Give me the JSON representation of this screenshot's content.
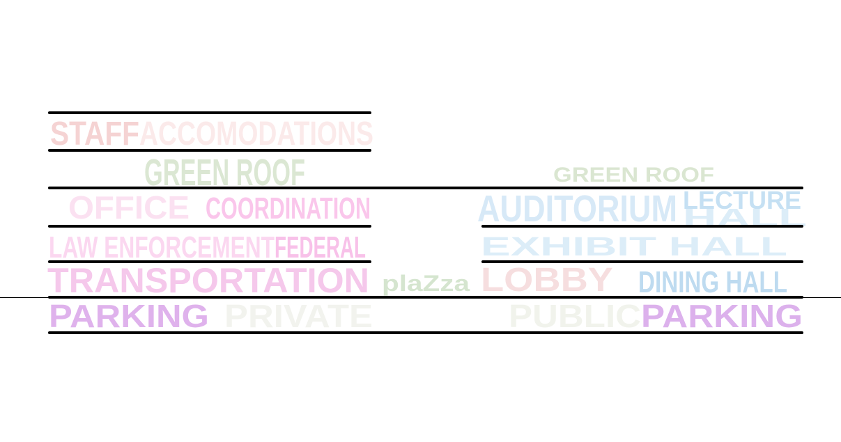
{
  "labels": [
    "STAFF",
    "ACCOMODATIONS",
    "GREEN ROOF",
    "OFFICE",
    "COORDINATION",
    "LAW ENFORCEMENT",
    "FEDERAL",
    "TRANSPORTATION",
    "plaZza",
    "PARKING",
    "PRIVATE",
    "GREEN ROOF",
    "AUDITORIUM",
    "LECTURE",
    "HALL",
    "EXHIBIT HALL",
    "LOBBY",
    "DINING HALL",
    "PUBLIC",
    "PARKING"
  ]
}
